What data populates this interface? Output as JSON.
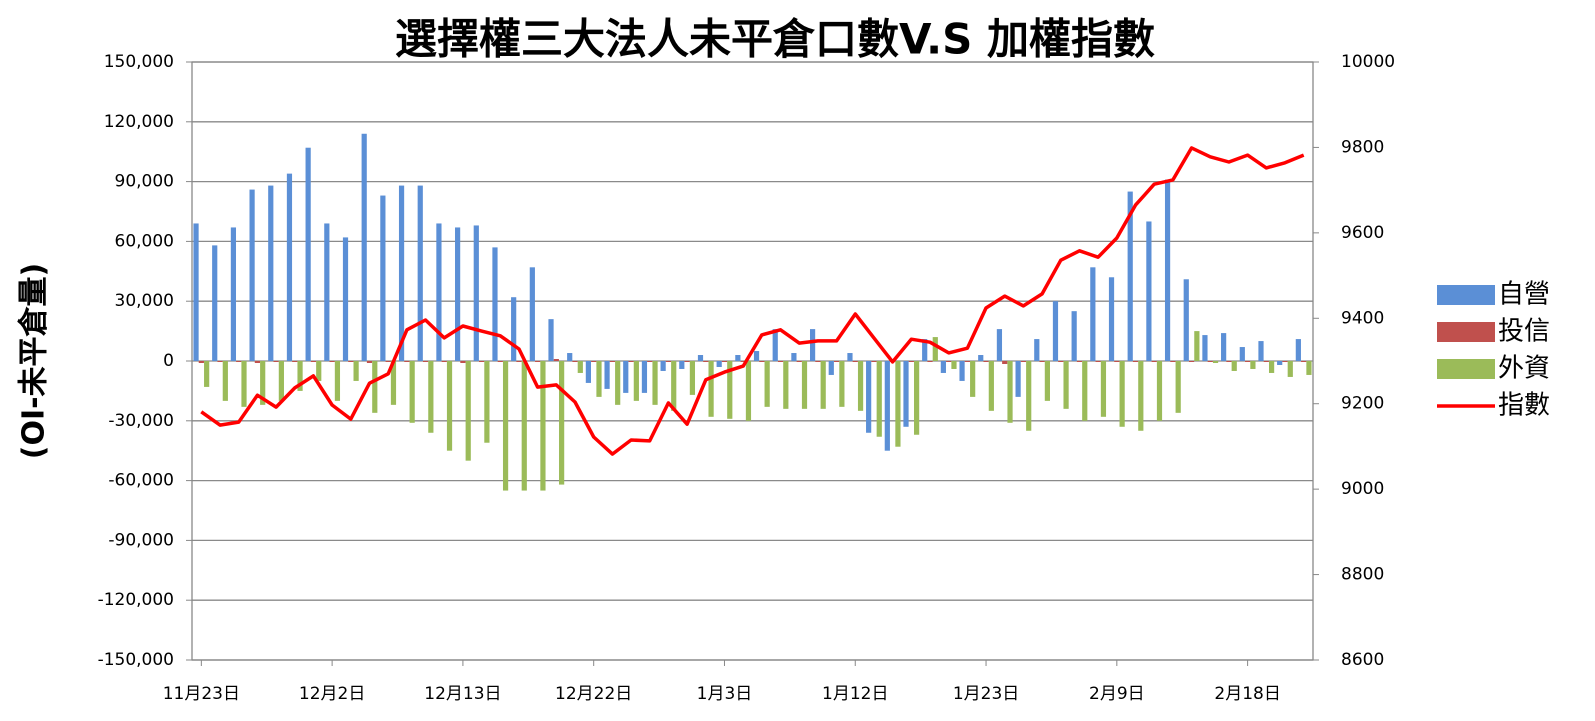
{
  "chart_data": {
    "type": "bar_line",
    "title": "選擇權三大法人未平倉口數V.S 加權指數",
    "y_axis_label": "(OI-未平倉量)",
    "categories": [
      "11月23日",
      null,
      null,
      null,
      null,
      null,
      null,
      "12月2日",
      null,
      null,
      null,
      null,
      null,
      null,
      "12月13日",
      null,
      null,
      null,
      null,
      null,
      null,
      "12月22日",
      null,
      null,
      null,
      null,
      null,
      null,
      "1月3日",
      null,
      null,
      null,
      null,
      null,
      null,
      "1月12日",
      null,
      null,
      null,
      null,
      null,
      null,
      "1月23日",
      null,
      null,
      null,
      null,
      null,
      null,
      "2月9日",
      null,
      null,
      null,
      null,
      null,
      null,
      "2月18日",
      null,
      null,
      null
    ],
    "series": [
      {
        "name": "自營",
        "color": "#5b8fd6",
        "axis": "y",
        "values": [
          69000,
          58000,
          67000,
          86000,
          88000,
          94000,
          107000,
          69000,
          62000,
          114000,
          83000,
          88000,
          88000,
          69000,
          67000,
          68000,
          57000,
          32000,
          47000,
          21000,
          4000,
          -11000,
          -14000,
          -16000,
          -16000,
          -5000,
          -4000,
          3000,
          -3000,
          3000,
          5000,
          16000,
          4000,
          16000,
          -7000,
          4000,
          -36000,
          -45000,
          -33000,
          11000,
          -6000,
          -10000,
          3000,
          16000,
          -18000,
          11000,
          30000,
          25000,
          47000,
          42000,
          85000,
          70000,
          91000,
          41000,
          13000,
          14000,
          7000,
          10000,
          -2000,
          11000
        ]
      },
      {
        "name": "投信",
        "color": "#c0504d",
        "axis": "y",
        "values": [
          -1000,
          -500,
          -500,
          -1000,
          -500,
          -500,
          -500,
          -500,
          -500,
          -1000,
          -500,
          -500,
          -500,
          -500,
          -1000,
          -500,
          -500,
          -500,
          -500,
          1000,
          -500,
          -500,
          -500,
          -500,
          -500,
          -500,
          -500,
          -500,
          -500,
          -500,
          -500,
          -500,
          -500,
          -500,
          -500,
          -500,
          -500,
          -500,
          -500,
          -500,
          -500,
          -500,
          -500,
          -1500,
          -500,
          -500,
          -500,
          -500,
          -500,
          -500,
          -500,
          -500,
          -500,
          -500,
          -500,
          -500,
          -500,
          -500,
          -500,
          -500
        ]
      },
      {
        "name": "外資",
        "color": "#9bbb59",
        "axis": "y",
        "values": [
          -13000,
          -20000,
          -23000,
          -22000,
          -20000,
          -15000,
          -10000,
          -20000,
          -10000,
          -26000,
          -22000,
          -31000,
          -36000,
          -45000,
          -50000,
          -41000,
          -65000,
          -65000,
          -65000,
          -62000,
          -6000,
          -18000,
          -22000,
          -20000,
          -22000,
          -25000,
          -17000,
          -28000,
          -29000,
          -30000,
          -23000,
          -24000,
          -24000,
          -24000,
          -23000,
          -25000,
          -38000,
          -43000,
          -37000,
          12000,
          -4000,
          -18000,
          -25000,
          -31000,
          -35000,
          -20000,
          -24000,
          -30000,
          -28000,
          -33000,
          -35000,
          -30000,
          -26000,
          15000,
          -1000,
          -5000,
          -4000,
          -6000,
          -8000,
          -7000
        ]
      },
      {
        "name": "指數",
        "color": "#ff0000",
        "axis": "y2",
        "line": true,
        "values": [
          9181,
          9150,
          9157,
          9220,
          9192,
          9237,
          9265,
          9197,
          9164,
          9248,
          9270,
          9373,
          9396,
          9354,
          9382,
          9370,
          9359,
          9328,
          9239,
          9244,
          9204,
          9122,
          9082,
          9115,
          9113,
          9202,
          9152,
          9256,
          9274,
          9288,
          9361,
          9373,
          9342,
          9347,
          9347,
          9410,
          9354,
          9298,
          9351,
          9344,
          9319,
          9330,
          9424,
          9452,
          9429,
          9457,
          9536,
          9558,
          9543,
          9588,
          9665,
          9714,
          9724,
          9799,
          9778,
          9766,
          9782,
          9752,
          9764,
          9782
        ]
      }
    ],
    "ylim": [
      -150000,
      150000
    ],
    "yticks": [
      {
        "value": -150000,
        "label": "-150,000"
      },
      {
        "value": -120000,
        "label": "-120,000"
      },
      {
        "value": -90000,
        "label": "-90,000"
      },
      {
        "value": -60000,
        "label": "-60,000"
      },
      {
        "value": -30000,
        "label": "-30,000"
      },
      0,
      {
        "value": 30000,
        "label": "30,000"
      },
      {
        "value": 60000,
        "label": "60,000"
      },
      {
        "value": 90000,
        "label": "90,000"
      },
      {
        "value": 120000,
        "label": "120,000"
      },
      {
        "value": 150000,
        "label": "150,000"
      }
    ],
    "y2lim": [
      8600,
      10000
    ],
    "y2ticks": [
      8600,
      8800,
      9000,
      9200,
      9400,
      9600,
      9800,
      10000
    ],
    "grid": true,
    "legend": "right"
  }
}
